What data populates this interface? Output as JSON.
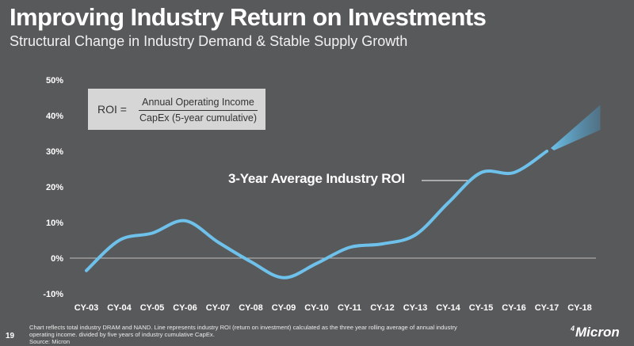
{
  "slide": {
    "title": "Improving Industry Return on Investments",
    "subtitle": "Structural Change in Industry Demand & Stable Supply Growth",
    "page_number": "19",
    "footnote_line1": "Chart reflects total industry DRAM and NAND. Line represents industry ROI (return on investment) calculated as the three year rolling average of annual industry",
    "footnote_line2": "operating income. divided by five years of industry cumulative CapEx.",
    "footnote_line3": "Source: Micron",
    "logo_text": "Micron",
    "logo_mark": "4"
  },
  "formula": {
    "lhs": "ROI =",
    "numerator": "Annual Operating Income",
    "denominator": "CapEx (5-year cumulative)"
  },
  "colors": {
    "background": "#58595b",
    "line": "#6ec1ea",
    "axis_line": "#bfbfbf",
    "formula_box": "#d6d6d6"
  },
  "chart_data": {
    "type": "line",
    "title": "",
    "xlabel": "",
    "ylabel": "",
    "categories": [
      "CY-03",
      "CY-04",
      "CY-05",
      "CY-06",
      "CY-07",
      "CY-08",
      "CY-09",
      "CY-10",
      "CY-11",
      "CY-12",
      "CY-13",
      "CY-14",
      "CY-15",
      "CY-16",
      "CY-17",
      "CY-18"
    ],
    "y_tick_labels": [
      "50%",
      "40%",
      "30%",
      "20%",
      "10%",
      "0%",
      "-10%"
    ],
    "ylim": [
      -10,
      50
    ],
    "grid": false,
    "series": [
      {
        "name": "3-Year Average Industry ROI",
        "values": [
          -3.5,
          5,
          7,
          10.5,
          4.5,
          -1,
          -5.5,
          -1.5,
          3,
          4,
          6.5,
          15.5,
          24,
          24,
          30,
          null
        ]
      }
    ],
    "projection": {
      "from_category": "CY-17",
      "to_category": "CY-18",
      "start_value": 30,
      "end_range": [
        36,
        43
      ]
    }
  }
}
